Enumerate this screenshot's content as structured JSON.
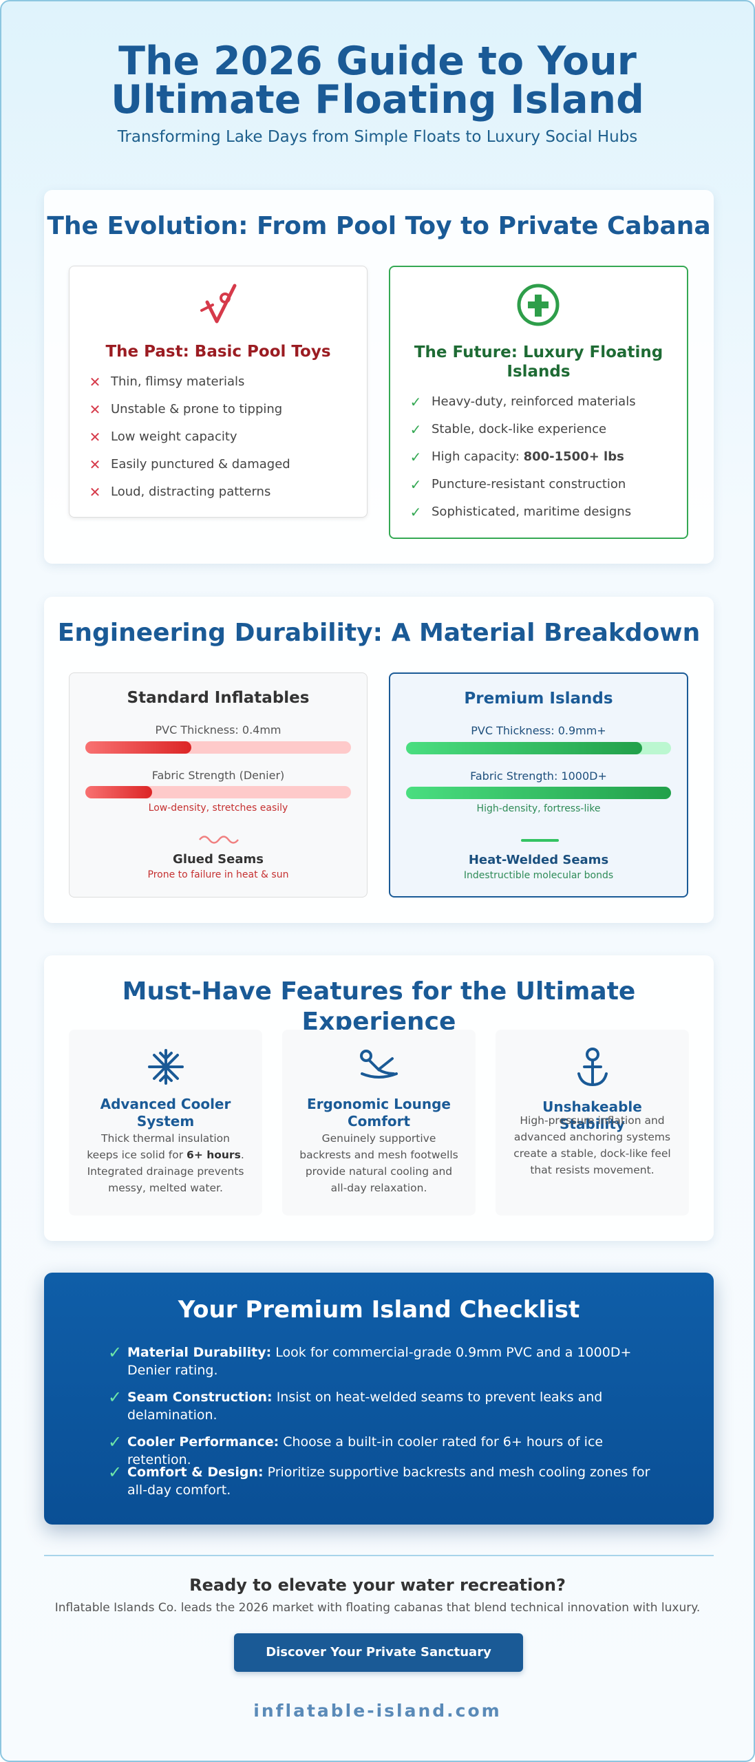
{
  "header": {
    "title": "The 2026 Guide to Your Ultimate Floating Island",
    "subtitle": "Transforming Lake Days from Simple Floats to Luxury Social Hubs"
  },
  "evolution": {
    "title": "The Evolution: From Pool Toy to Private Cabana",
    "past": {
      "title": "The Past: Basic Pool Toys",
      "items": [
        {
          "text": "Thin, flimsy materials"
        },
        {
          "text": "Unstable & prone to tipping"
        },
        {
          "text": "Low weight capacity"
        },
        {
          "text": "Easily punctured & damaged"
        },
        {
          "text": "Loud, distracting patterns"
        }
      ]
    },
    "future": {
      "title": "The Future: Luxury Floating Islands",
      "items": [
        {
          "text": "Heavy-duty, reinforced materials"
        },
        {
          "text": "Stable, dock-like experience"
        },
        {
          "text": "High capacity: ",
          "strong": "800-1500+ lbs"
        },
        {
          "text": "Puncture-resistant construction"
        },
        {
          "text": "Sophisticated, maritime designs"
        }
      ]
    }
  },
  "materials": {
    "title": "Engineering Durability: A Material Breakdown",
    "standard": {
      "title": "Standard Inflatables",
      "pvc_label": "PVC Thickness: 0.4mm",
      "fabric_label": "Fabric Strength (Denier)",
      "fabric_note": "Low-density, stretches easily",
      "seam_title": "Glued Seams",
      "seam_note": "Prone to failure in heat & sun"
    },
    "premium": {
      "title": "Premium Islands",
      "pvc_label": "PVC Thickness: 0.9mm+",
      "fabric_label": "Fabric Strength: 1000D+",
      "fabric_note": "High-density, fortress-like",
      "seam_title": "Heat-Welded Seams",
      "seam_note": "Indestructible molecular bonds"
    }
  },
  "features": {
    "title": "Must-Have Features for the Ultimate Experience",
    "items": [
      {
        "title": "Advanced Cooler System",
        "description": [
          {
            "text": "Thick thermal insulation keeps ice solid for "
          },
          {
            "strong": "6+ hours"
          },
          {
            "text": ". Integrated drainage prevents messy, melted water."
          }
        ]
      },
      {
        "title": "Ergonomic Lounge Comfort",
        "description": [
          {
            "text": "Genuinely supportive backrests and mesh footwells provide natural cooling and all-day relaxation."
          }
        ]
      },
      {
        "title": "Unshakeable Stability",
        "description": [
          {
            "text": "High-pressure inflation and advanced anchoring systems create a stable, dock-like feel that resists movement."
          }
        ]
      }
    ]
  },
  "checklist": {
    "title": "Your Premium Island Checklist",
    "items": [
      {
        "label": "Material Durability:",
        "text": " Look for commercial-grade 0.9mm PVC and a 1000D+ Denier rating."
      },
      {
        "label": "Seam Construction:",
        "text": " Insist on heat-welded seams to prevent leaks and delamination."
      },
      {
        "label": "Cooler Performance:",
        "text": " Choose a built-in cooler rated for 6+ hours of ice retention."
      },
      {
        "label": "Comfort & Design:",
        "text": " Prioritize supportive backrests and mesh cooling zones for all-day comfort."
      }
    ]
  },
  "cta": {
    "title": "Ready to elevate your water recreation?",
    "text": "Inflatable Islands Co. leads the 2026 market with floating cabanas that blend technical innovation with luxury.",
    "button": "Discover Your Private Sanctuary",
    "domain": "inflatable-island.com"
  }
}
